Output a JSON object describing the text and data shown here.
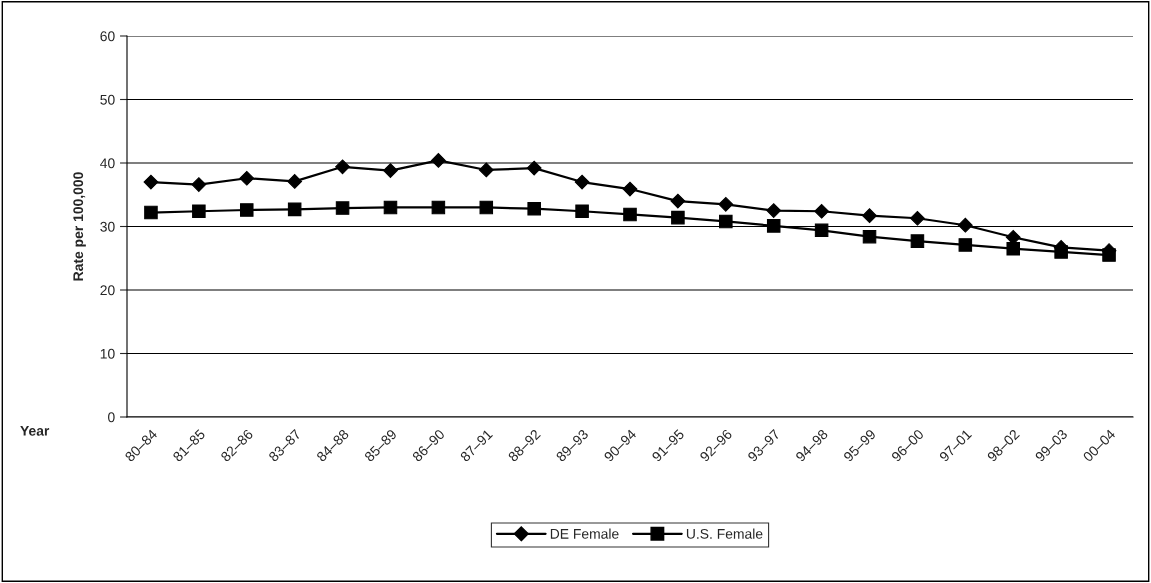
{
  "chart_data": {
    "type": "line",
    "xlabel": "Year",
    "ylabel": "Rate per 100,000",
    "categories": [
      "80–84",
      "81–85",
      "82–86",
      "83–87",
      "84–88",
      "85–89",
      "86–90",
      "87–91",
      "88–92",
      "89–93",
      "90–94",
      "91–95",
      "92–96",
      "93–97",
      "94–98",
      "95–99",
      "96–00",
      "97–01",
      "98–02",
      "99–03",
      "00–04"
    ],
    "series": [
      {
        "name": "DE Female",
        "color": "#000000",
        "marker": "diamond",
        "values": [
          37.0,
          36.6,
          37.6,
          37.1,
          39.4,
          38.8,
          40.4,
          38.9,
          39.2,
          37.0,
          35.9,
          34.0,
          33.5,
          32.5,
          32.4,
          31.7,
          31.3,
          30.2,
          28.3,
          26.7,
          26.2
        ]
      },
      {
        "name": "U.S. Female",
        "color": "#000000",
        "marker": "square",
        "values": [
          32.2,
          32.4,
          32.6,
          32.7,
          32.9,
          33.0,
          33.0,
          33.0,
          32.8,
          32.4,
          31.9,
          31.4,
          30.8,
          30.1,
          29.4,
          28.4,
          27.7,
          27.1,
          26.5,
          26.0,
          25.5
        ]
      }
    ],
    "ylim": [
      0,
      60
    ],
    "yticks": [
      0,
      10,
      20,
      30,
      40,
      50,
      60
    ],
    "grid": "y",
    "legend": "bottom",
    "line_style": "solid"
  }
}
